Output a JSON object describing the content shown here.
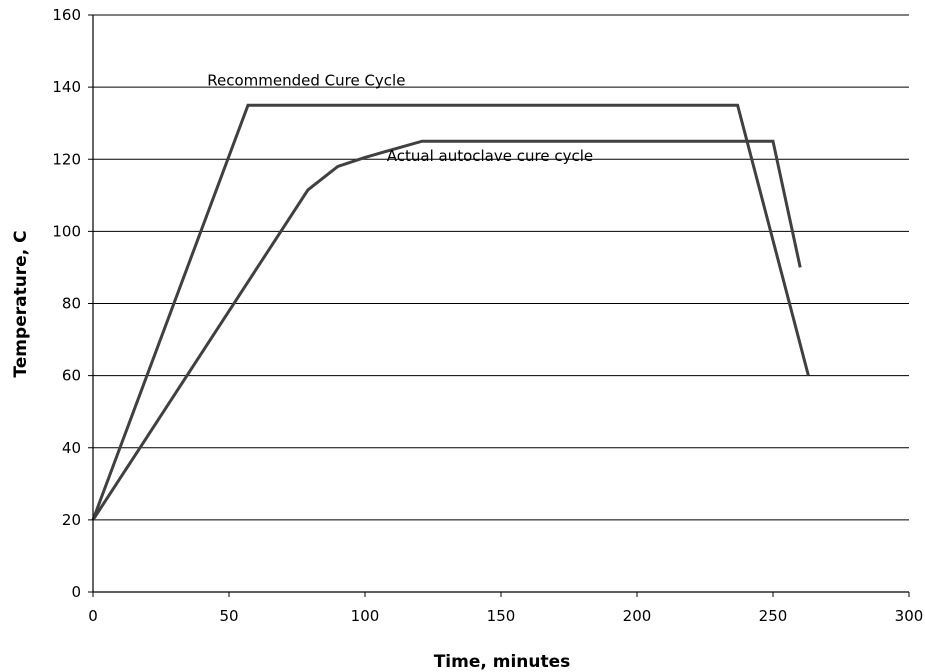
{
  "chart_data": {
    "type": "line",
    "title": "",
    "xlabel": "Time, minutes",
    "ylabel": "Temperature, C",
    "xlim": [
      0,
      300
    ],
    "ylim": [
      0,
      160
    ],
    "xticks": [
      0,
      50,
      100,
      150,
      200,
      250,
      300
    ],
    "yticks": [
      0,
      20,
      40,
      60,
      80,
      100,
      120,
      140,
      160
    ],
    "grid": "horizontal",
    "line_color": "#404040",
    "series": [
      {
        "x": [
          0,
          57,
          237,
          263
        ],
        "y": [
          20,
          135,
          135,
          60
        ]
      },
      {
        "x": [
          0,
          79,
          90,
          100,
          121,
          250,
          260
        ],
        "y": [
          20,
          111.5,
          118,
          120.5,
          125,
          125,
          90
        ]
      }
    ],
    "annotations": [
      {
        "text": "Recommended Cure Cycle",
        "x": 42,
        "y": 140.5
      },
      {
        "text": "Actual autoclave cure cycle",
        "x": 108,
        "y": 119.5
      }
    ]
  }
}
